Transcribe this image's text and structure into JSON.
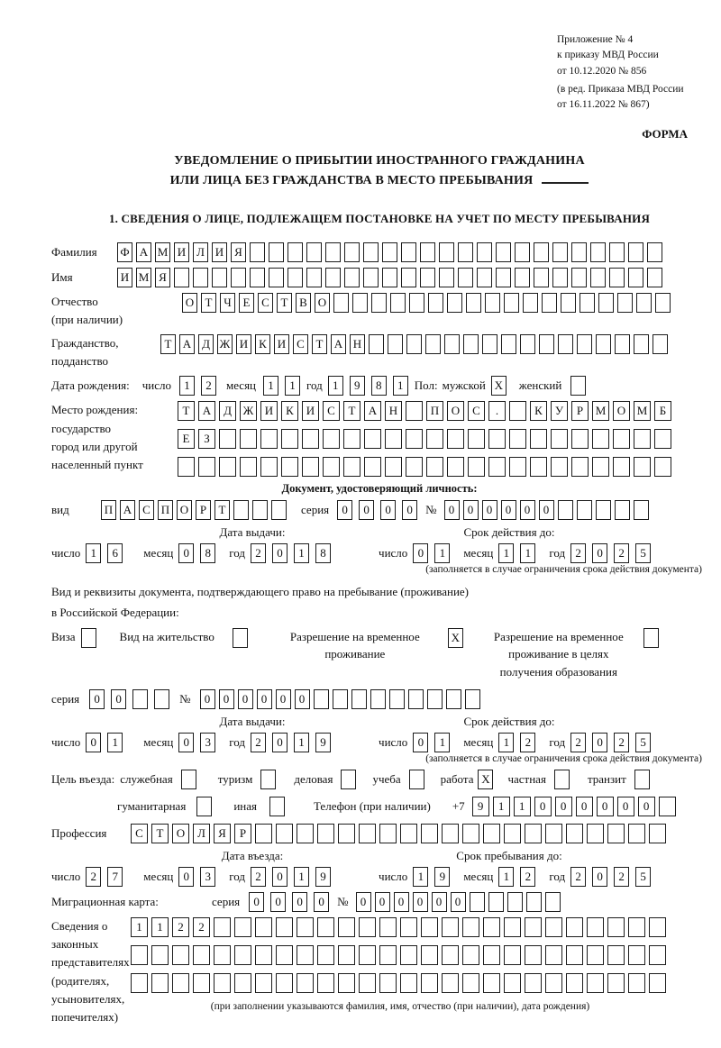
{
  "header": {
    "annex": [
      "Приложение № 4",
      "к приказу МВД России",
      "от 10.12.2020 № 856"
    ],
    "revision": [
      "(в ред. Приказа МВД России",
      "от 16.11.2022 № 867)"
    ],
    "forma": "ФОРМА"
  },
  "title": {
    "line1": "УВЕДОМЛЕНИЕ О ПРИБЫТИИ ИНОСТРАННОГО ГРАЖДАНИНА",
    "line2": "ИЛИ ЛИЦА БЕЗ ГРАЖДАНСТВА В МЕСТО ПРЕБЫВАНИЯ"
  },
  "section1_heading": "1. СВЕДЕНИЯ О ЛИЦЕ, ПОДЛЕЖАЩЕМ ПОСТАНОВКЕ НА УЧЕТ ПО МЕСТУ ПРЕБЫВАНИЯ",
  "labels": {
    "surname": "Фамилия",
    "name": "Имя",
    "patronymic": "Отчество",
    "patronymic_note": "(при наличии)",
    "citizenship1": "Гражданство,",
    "citizenship2": "подданство",
    "birth_date": "Дата рождения:",
    "day": "число",
    "month": "месяц",
    "year": "год",
    "sex": "Пол:",
    "male": "мужской",
    "female": "женский",
    "birthplace1": "Место рождения:",
    "birthplace2": "государство",
    "birthplace3": "город или другой",
    "birthplace4": "населенный пункт",
    "identity_doc_heading": "Документ, удостоверяющий личность:",
    "vid": "вид",
    "seriya": "серия",
    "number_sign": "№",
    "issue_date": "Дата выдачи:",
    "valid_until": "Срок действия до:",
    "validity_note": "(заполняется в случае ограничения срока действия документа)",
    "residence_doc_line1": "Вид и реквизиты документа, подтверждающего право на пребывание (проживание)",
    "residence_doc_line2": "в Российской Федерации:",
    "visa": "Виза",
    "residence_permit": "Вид на жительство",
    "temp_residence": "Разрешение на временное проживание",
    "temp_residence_edu": "Разрешение на временное проживание в целях получения образования",
    "entry_goal": "Цель въезда:",
    "goal_official": "служебная",
    "goal_tourism": "туризм",
    "goal_business": "деловая",
    "goal_study": "учеба",
    "goal_work": "работа",
    "goal_private": "частная",
    "goal_transit": "транзит",
    "goal_humanitarian": "гуманитарная",
    "goal_other": "иная",
    "phone": "Телефон (при наличии)",
    "phone_prefix": "+7",
    "profession": "Профессия",
    "entry_date": "Дата въезда:",
    "stay_until": "Срок пребывания до:",
    "migration_card": "Миграционная карта:",
    "representatives": [
      "Сведения о",
      "законных",
      "представителях",
      "(родителях,",
      "усыновителях,",
      "попечителях)"
    ],
    "representatives_note": "(при заполнении указываются фамилия, имя, отчество (при наличии), дата рождения)"
  },
  "fields": {
    "surname": {
      "value": "ФАМИЛИЯ",
      "length": 29
    },
    "name": {
      "value": "ИМЯ",
      "length": 29
    },
    "patronymic": {
      "value": "ОТЧЕСТВО",
      "length": 26
    },
    "citizenship": {
      "value": "ТАДЖИКИСТАН",
      "length": 27
    },
    "birth_day": {
      "value": "12",
      "length": 2
    },
    "birth_month": {
      "value": "11",
      "length": 2
    },
    "birth_year": {
      "value": "1981",
      "length": 4
    },
    "sex_male": {
      "value": "X",
      "length": 1
    },
    "sex_female": {
      "value": "",
      "length": 1
    },
    "birthplace_row1": {
      "value": "ТАДЖИКИСТАН ПОС. КУРМОМБ",
      "length": 24
    },
    "birthplace_row2": {
      "value": "ЕЗ",
      "length": 24
    },
    "birthplace_row3": {
      "value": "",
      "length": 24
    },
    "doc_vid": {
      "value": "ПАСПОРТ",
      "length": 10
    },
    "doc_seriya": {
      "value": "0000",
      "length": 4
    },
    "doc_number": {
      "value": "000000",
      "length": 11
    },
    "doc_issue_day": {
      "value": "16",
      "length": 2
    },
    "doc_issue_month": {
      "value": "08",
      "length": 2
    },
    "doc_issue_year": {
      "value": "2018",
      "length": 4
    },
    "doc_valid_day": {
      "value": "01",
      "length": 2
    },
    "doc_valid_month": {
      "value": "11",
      "length": 2
    },
    "doc_valid_year": {
      "value": "2025",
      "length": 4
    },
    "cb_visa": {
      "value": "",
      "length": 1
    },
    "cb_residence_permit": {
      "value": "",
      "length": 1
    },
    "cb_temp_residence": {
      "value": "X",
      "length": 1
    },
    "cb_temp_residence_edu": {
      "value": "",
      "length": 1
    },
    "permit_seriya": {
      "value": "00",
      "length": 4
    },
    "permit_number": {
      "value": "000000",
      "length": 15
    },
    "permit_issue_day": {
      "value": "01",
      "length": 2
    },
    "permit_issue_month": {
      "value": "03",
      "length": 2
    },
    "permit_issue_year": {
      "value": "2019",
      "length": 4
    },
    "permit_valid_day": {
      "value": "01",
      "length": 2
    },
    "permit_valid_month": {
      "value": "12",
      "length": 2
    },
    "permit_valid_year": {
      "value": "2025",
      "length": 4
    },
    "cb_official": {
      "value": "",
      "length": 1
    },
    "cb_tourism": {
      "value": "",
      "length": 1
    },
    "cb_business": {
      "value": "",
      "length": 1
    },
    "cb_study": {
      "value": "",
      "length": 1
    },
    "cb_work": {
      "value": "X",
      "length": 1
    },
    "cb_private": {
      "value": "",
      "length": 1
    },
    "cb_transit": {
      "value": "",
      "length": 1
    },
    "cb_humanitarian": {
      "value": "",
      "length": 1
    },
    "cb_other": {
      "value": "",
      "length": 1
    },
    "phone": {
      "value": "911000000",
      "length": 10
    },
    "profession": {
      "value": "СТОЛЯР",
      "length": 26
    },
    "entry_day": {
      "value": "27",
      "length": 2
    },
    "entry_month": {
      "value": "03",
      "length": 2
    },
    "entry_year": {
      "value": "2019",
      "length": 4
    },
    "stay_day": {
      "value": "19",
      "length": 2
    },
    "stay_month": {
      "value": "12",
      "length": 2
    },
    "stay_year": {
      "value": "2025",
      "length": 4
    },
    "mig_seriya": {
      "value": "0000",
      "length": 4
    },
    "mig_number": {
      "value": "000000",
      "length": 11
    },
    "rep_row1": {
      "value": "1122",
      "length": 26
    },
    "rep_row2": {
      "value": "",
      "length": 26
    },
    "rep_row3": {
      "value": "",
      "length": 26
    }
  }
}
